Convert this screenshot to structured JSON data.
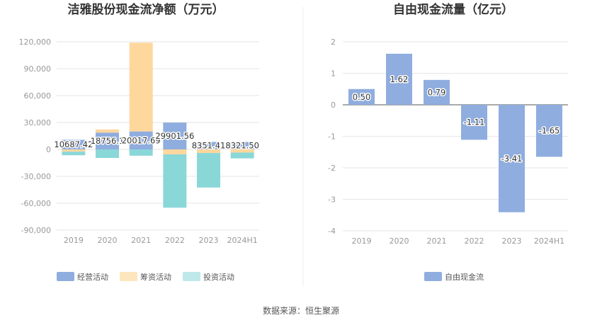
{
  "source": "数据来源：恒生聚源",
  "chart_data": [
    {
      "type": "bar",
      "stacked": true,
      "title": "洁雅股份现金流净额（万元）",
      "categories": [
        "2019",
        "2020",
        "2021",
        "2022",
        "2023",
        "2024H1"
      ],
      "ylim": [
        -90000,
        120000
      ],
      "yticks": [
        -90000,
        -60000,
        -30000,
        0,
        30000,
        60000,
        90000,
        120000
      ],
      "ytick_labels": [
        "-90,000",
        "-60,000",
        "-30,000",
        "0",
        "30,000",
        "60,000",
        "90,000",
        "120,000"
      ],
      "grid": true,
      "legend_position": "bottom",
      "colors": {
        "operating": "#8fadde",
        "financing": "#fdd79c",
        "investing": "#8ad7d8"
      },
      "legend": [
        {
          "name": "经营活动",
          "color": "#8fadde"
        },
        {
          "name": "筹资活动",
          "color": "#fde5bd"
        },
        {
          "name": "投资活动",
          "color": "#bfe8e9"
        }
      ],
      "series": [
        {
          "name": "经营活动",
          "values": [
            10687.42,
            18756.1,
            20017.69,
            29901.56,
            8351.41,
            8321.5
          ]
        },
        {
          "name": "筹资活动",
          "values": [
            -2500,
            3500,
            99000,
            -5500,
            -4000,
            -3500
          ]
        },
        {
          "name": "投资活动",
          "values": [
            -4000,
            -9500,
            -7000,
            -59500,
            -38500,
            -6500
          ]
        }
      ],
      "data_labels": [
        "10687.42",
        "18756.1",
        "20017.69",
        "29901.56",
        "8351.41",
        "8321.50"
      ]
    },
    {
      "type": "bar",
      "title": "自由现金流量（亿元）",
      "categories": [
        "2019",
        "2020",
        "2021",
        "2022",
        "2023",
        "2024H1"
      ],
      "ylim": [
        -4,
        2
      ],
      "yticks": [
        -4,
        -3,
        -2,
        -1,
        0,
        1,
        2
      ],
      "ytick_labels": [
        "-4",
        "-3",
        "-2",
        "-1",
        "0",
        "1",
        "2"
      ],
      "grid": true,
      "legend_position": "bottom",
      "color": "#8fadde",
      "legend": [
        {
          "name": "自由现金流",
          "color": "#8fadde"
        }
      ],
      "series": [
        {
          "name": "自由现金流",
          "values": [
            0.5,
            1.62,
            0.79,
            -1.11,
            -3.41,
            -1.65
          ]
        }
      ],
      "data_labels": [
        "0.50",
        "1.62",
        "0.79",
        "-1.11",
        "-3.41",
        "-1.65"
      ]
    }
  ]
}
